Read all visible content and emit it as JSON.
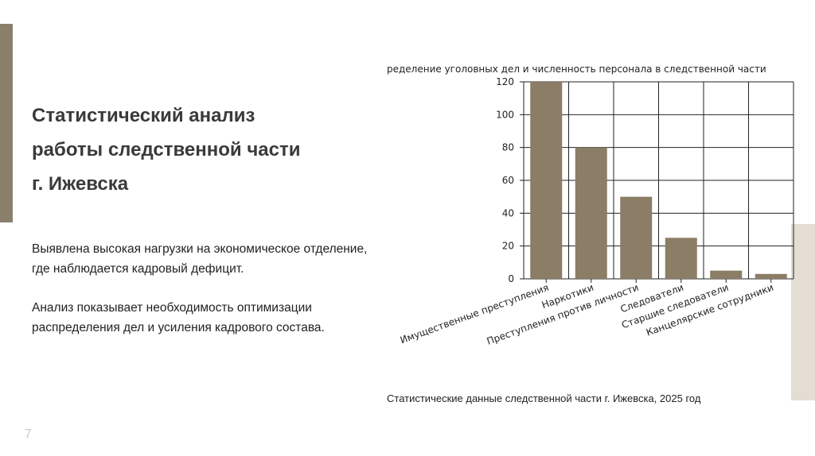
{
  "slide": {
    "title": "Статистический анализ\nработы следственной части\nг. Ижевска",
    "paragraph1": "Выявлена высокая нагрузки на экономическое отделение, где наблюдается кадровый дефицит.",
    "paragraph2": "Анализ показывает необходимость оптимизации распределения дел и усиления кадрового состава.",
    "caption": "Статистические данные следственной части г. Ижевска, 2025 год",
    "page_number": "7",
    "accent_color": "#8a7f6a",
    "accent_light_color": "#e3ddd3"
  },
  "chart_data": {
    "type": "bar",
    "title": "ределение уголовных дел и численность персонала в следственной части",
    "categories": [
      "Имущественные преступления",
      "Наркотики",
      "Преступления против личности",
      "Следователи",
      "Старшие следователи",
      "Канцелярские сотрудники"
    ],
    "values": [
      120,
      80,
      50,
      25,
      5,
      3
    ],
    "ylim": [
      0,
      120
    ],
    "yticks": [
      0,
      20,
      40,
      60,
      80,
      100,
      120
    ],
    "grid": true,
    "bar_color": "#8b7d66",
    "xlabel": "",
    "ylabel": ""
  }
}
